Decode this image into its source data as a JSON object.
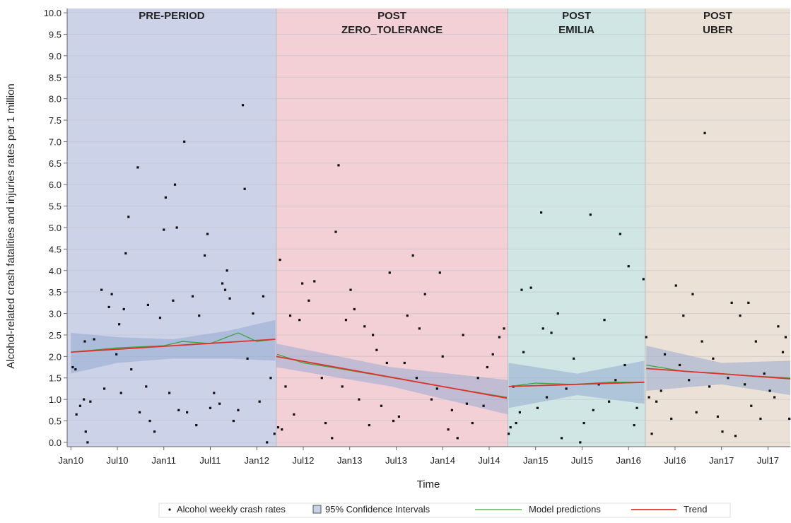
{
  "chart_data": {
    "type": "scatter",
    "x_label": "Time",
    "y_label": "Alcohol-related crash fatalities and injuries rates per 1 million",
    "xlim": [
      2009.96,
      2017.74
    ],
    "ylim": [
      -0.1,
      10.1
    ],
    "grid": true,
    "xticks": [
      {
        "value": 2010,
        "label": "Jan10"
      },
      {
        "value": 2010.5,
        "label": "Jul10"
      },
      {
        "value": 2011,
        "label": "Jan11"
      },
      {
        "value": 2011.5,
        "label": "Jul11"
      },
      {
        "value": 2012,
        "label": "Jan12"
      },
      {
        "value": 2012.5,
        "label": "Jul12"
      },
      {
        "value": 2013,
        "label": "Jan13"
      },
      {
        "value": 2013.5,
        "label": "Jul13"
      },
      {
        "value": 2014,
        "label": "Jan14"
      },
      {
        "value": 2014.5,
        "label": "Jul14"
      },
      {
        "value": 2015,
        "label": "Jan15"
      },
      {
        "value": 2015.5,
        "label": "Jul15"
      },
      {
        "value": 2016,
        "label": "Jan16"
      },
      {
        "value": 2016.5,
        "label": "Jul16"
      },
      {
        "value": 2017,
        "label": "Jan17"
      },
      {
        "value": 2017.5,
        "label": "Jul17"
      }
    ],
    "yticks": [
      {
        "value": 0,
        "label": "0.0"
      },
      0.5,
      {
        "value": 1,
        "label": "1.0"
      },
      1.5,
      {
        "value": 2,
        "label": "2.0"
      },
      2.5,
      {
        "value": 3,
        "label": "3.0"
      },
      3.5,
      {
        "value": 4,
        "label": "4.0"
      },
      4.5,
      {
        "value": 5,
        "label": "5.0"
      },
      5.5,
      {
        "value": 6,
        "label": "6.0"
      },
      6.5,
      {
        "value": 7,
        "label": "7.0"
      },
      7.5,
      {
        "value": 8,
        "label": "8.0"
      },
      8.5,
      {
        "value": 9,
        "label": "9.0"
      },
      9.5,
      {
        "value": 10,
        "label": "10.0"
      }
    ],
    "periods": [
      {
        "lines": [
          "PRE-PERIOD"
        ],
        "start": 2009.96,
        "end": 2012.21,
        "color": "#ccd3e8"
      },
      {
        "lines": [
          "POST",
          "ZERO_TOLERANCE"
        ],
        "start": 2012.21,
        "end": 2014.7,
        "color": "#f2d0d6"
      },
      {
        "lines": [
          "POST",
          "EMILIA"
        ],
        "start": 2014.7,
        "end": 2016.18,
        "color": "#cfe6e4"
      },
      {
        "lines": [
          "POST",
          "UBER"
        ],
        "start": 2016.18,
        "end": 2017.74,
        "color": "#ece1d6"
      }
    ],
    "series": [
      {
        "name": "Alcohol weekly crash rates",
        "color": "#111111",
        "x": [
          2010.02,
          2010.06,
          2010.05,
          2010.1,
          2010.14,
          2010.16,
          2010.18,
          2010.21,
          2010.15,
          2010.25,
          2010.33,
          2010.36,
          2010.41,
          2010.44,
          2010.49,
          2010.52,
          2010.54,
          2010.57,
          2010.59,
          2010.62,
          2010.65,
          2010.72,
          2010.74,
          2010.81,
          2010.83,
          2010.85,
          2010.9,
          2010.96,
          2011.0,
          2011.02,
          2011.06,
          2011.1,
          2011.12,
          2011.14,
          2011.16,
          2011.22,
          2011.25,
          2011.31,
          2011.35,
          2011.38,
          2011.44,
          2011.47,
          2011.5,
          2011.54,
          2011.6,
          2011.63,
          2011.66,
          2011.68,
          2011.71,
          2011.75,
          2011.8,
          2011.85,
          2011.87,
          2011.9,
          2011.96,
          2012.03,
          2012.07,
          2012.11,
          2012.15,
          2012.19,
          2012.23,
          2012.25,
          2012.27,
          2012.31,
          2012.36,
          2012.4,
          2012.46,
          2012.49,
          2012.56,
          2012.62,
          2012.7,
          2012.74,
          2012.81,
          2012.85,
          2012.88,
          2012.92,
          2012.96,
          2013.01,
          2013.05,
          2013.1,
          2013.16,
          2013.21,
          2013.25,
          2013.29,
          2013.34,
          2013.4,
          2013.43,
          2013.47,
          2013.53,
          2013.59,
          2013.62,
          2013.68,
          2013.72,
          2013.75,
          2013.81,
          2013.88,
          2013.94,
          2013.97,
          2014.0,
          2014.06,
          2014.1,
          2014.16,
          2014.22,
          2014.26,
          2014.32,
          2014.38,
          2014.44,
          2014.48,
          2014.54,
          2014.61,
          2014.66,
          2014.71,
          2014.73,
          2014.76,
          2014.79,
          2014.83,
          2014.87,
          2014.85,
          2014.95,
          2015.02,
          2015.08,
          2015.12,
          2015.17,
          2015.24,
          2015.28,
          2015.33,
          2015.41,
          2015.48,
          2015.52,
          2015.59,
          2015.62,
          2015.68,
          2015.74,
          2015.79,
          2015.86,
          2015.91,
          2015.96,
          2016.0,
          2016.06,
          2016.09,
          2016.16,
          2015.06,
          2016.19,
          2016.22,
          2016.25,
          2016.3,
          2016.35,
          2016.39,
          2016.46,
          2016.51,
          2016.55,
          2016.59,
          2016.65,
          2016.69,
          2016.73,
          2016.79,
          2016.82,
          2016.87,
          2016.91,
          2016.96,
          2017.01,
          2017.07,
          2017.11,
          2017.15,
          2017.2,
          2017.25,
          2017.29,
          2017.32,
          2017.37,
          2017.42,
          2017.46,
          2017.52,
          2017.57,
          2017.61,
          2017.66,
          2017.69,
          2017.73
        ],
        "values": [
          1.75,
          0.65,
          1.7,
          0.85,
          1.0,
          0.25,
          0.0,
          0.95,
          2.35,
          2.4,
          3.55,
          1.25,
          3.15,
          3.45,
          2.05,
          2.75,
          1.15,
          3.1,
          4.4,
          5.25,
          1.7,
          6.4,
          0.7,
          1.3,
          3.2,
          0.5,
          0.25,
          2.9,
          4.95,
          5.7,
          1.15,
          3.3,
          6.0,
          5.0,
          0.75,
          7.0,
          0.7,
          3.4,
          0.4,
          2.95,
          4.35,
          4.85,
          0.8,
          1.15,
          0.9,
          3.7,
          3.55,
          4.0,
          3.35,
          0.5,
          0.75,
          7.85,
          5.9,
          1.95,
          3.0,
          0.95,
          3.4,
          0.0,
          1.5,
          0.2,
          0.35,
          4.25,
          0.3,
          1.3,
          2.95,
          0.65,
          2.85,
          3.7,
          3.3,
          3.75,
          1.5,
          0.45,
          0.1,
          4.9,
          6.45,
          1.3,
          2.85,
          3.55,
          3.1,
          1.0,
          2.7,
          0.4,
          2.5,
          2.15,
          0.85,
          1.85,
          3.95,
          0.5,
          0.6,
          1.85,
          2.95,
          4.35,
          1.5,
          2.65,
          3.45,
          1.0,
          1.25,
          3.95,
          2.0,
          0.3,
          0.75,
          0.1,
          2.5,
          0.9,
          0.45,
          1.5,
          0.85,
          1.75,
          2.05,
          2.45,
          2.65,
          0.2,
          0.35,
          1.3,
          0.45,
          0.7,
          2.1,
          3.55,
          3.6,
          0.8,
          2.65,
          1.05,
          2.55,
          3.0,
          0.1,
          1.25,
          1.95,
          0.0,
          0.45,
          5.3,
          0.75,
          1.35,
          2.85,
          0.95,
          1.45,
          4.85,
          1.8,
          4.1,
          0.4,
          0.8,
          3.8,
          5.35,
          2.45,
          1.05,
          0.2,
          0.95,
          1.2,
          2.05,
          0.55,
          3.65,
          1.8,
          2.95,
          1.45,
          3.45,
          0.7,
          2.35,
          7.2,
          1.3,
          1.95,
          0.6,
          0.25,
          1.5,
          3.25,
          0.15,
          2.95,
          1.35,
          3.25,
          0.85,
          2.35,
          0.55,
          1.6,
          1.2,
          1.05,
          2.7,
          2.1,
          2.45,
          0.55
        ]
      }
    ],
    "band": {
      "name": "95% Confidence Intervals",
      "color": "#8fa6cf",
      "x": [
        2010.0,
        2010.5,
        2011.1,
        2011.7,
        2012.2,
        null,
        2012.21,
        2013.45,
        2014.7,
        null,
        2014.71,
        2015.45,
        2016.17,
        null,
        2016.19,
        2017.0,
        2017.74
      ],
      "lower": [
        1.6,
        1.85,
        1.95,
        1.95,
        1.9,
        null,
        1.75,
        1.3,
        0.65,
        null,
        0.8,
        1.1,
        0.9,
        null,
        1.2,
        1.35,
        1.1
      ],
      "upper": [
        2.55,
        2.45,
        2.4,
        2.6,
        2.85,
        null,
        2.3,
        1.75,
        1.45,
        null,
        1.85,
        1.6,
        1.9,
        null,
        2.25,
        1.85,
        1.9
      ]
    },
    "lines": [
      {
        "name": "Model predictions",
        "color": "#3aa63a",
        "x": [
          2010.0,
          2010.5,
          2011.0,
          2011.2,
          2011.5,
          2011.8,
          2012.0,
          2012.2,
          null,
          2012.22,
          2012.5,
          2012.8,
          2013.2,
          2013.6,
          2014.0,
          2014.69,
          null,
          2014.71,
          2015.0,
          2015.4,
          2015.8,
          2016.17,
          null,
          2016.19,
          2016.6,
          2016.9,
          2017.3,
          2017.74
        ],
        "values": [
          2.1,
          2.2,
          2.25,
          2.35,
          2.3,
          2.55,
          2.35,
          2.4,
          null,
          2.05,
          1.85,
          1.75,
          1.6,
          1.45,
          1.3,
          1.05,
          null,
          1.3,
          1.38,
          1.35,
          1.4,
          1.4,
          null,
          1.8,
          1.65,
          1.62,
          1.55,
          1.5
        ]
      },
      {
        "name": "Trend",
        "color": "#e0322b",
        "x": [
          2010.0,
          2012.2,
          null,
          2012.21,
          2014.69,
          null,
          2014.71,
          2016.17,
          null,
          2016.19,
          2017.74
        ],
        "values": [
          2.1,
          2.4,
          null,
          2.0,
          1.03,
          null,
          1.3,
          1.4,
          null,
          1.72,
          1.48
        ]
      }
    ]
  }
}
